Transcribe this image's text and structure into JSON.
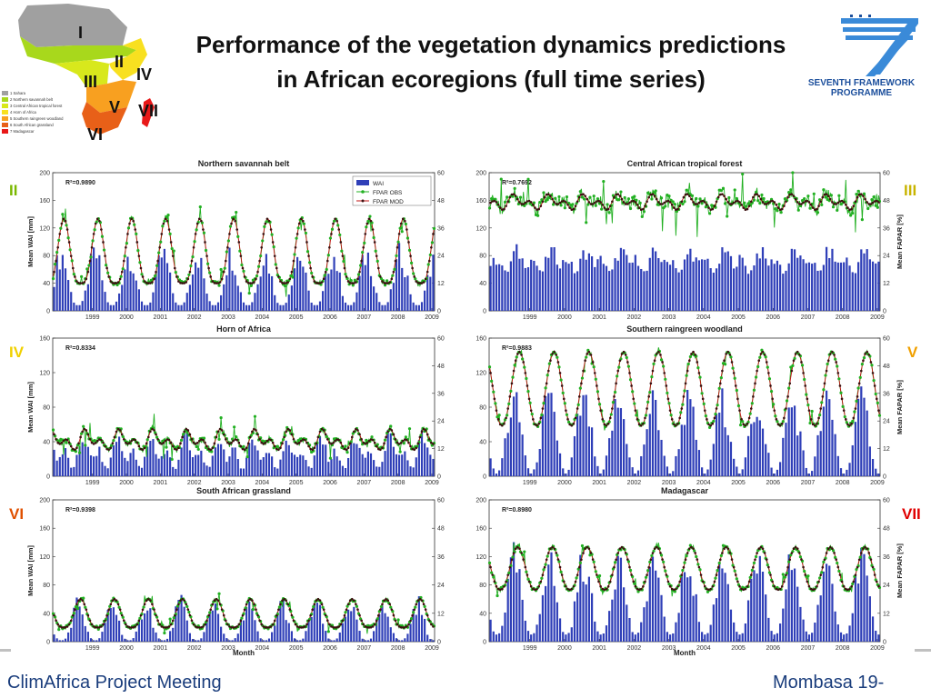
{
  "header": {
    "title_line1": "Performance of the vegetation dynamics predictions",
    "title_line2": "in African ecoregions (full time series)"
  },
  "logo": {
    "line1": "SEVENTH FRAMEWORK",
    "line2": "PROGRAMME",
    "color": "#1c4f9c"
  },
  "map": {
    "region_numbers": [
      "I",
      "II",
      "III",
      "IV",
      "V",
      "VI",
      "VII"
    ],
    "legend": [
      "1 Sahara",
      "2 Northern savannah belt",
      "3 Central African tropical forest",
      "4 Horn of Africa",
      "5 Southern raingreen woodland",
      "6 South African grassland",
      "7 Madagascar"
    ],
    "colors": [
      "#a0a0a0",
      "#a8d81c",
      "#d8e81c",
      "#f8e020",
      "#f8a020",
      "#e86018",
      "#e81818"
    ]
  },
  "footer": {
    "left": "ClimAfrica Project Meeting",
    "right": "Mombasa 19-"
  },
  "chart_data": [
    {
      "type": "bar",
      "title": "Northern savannah belt",
      "region_label": "II",
      "label_color": "#7ab800",
      "r2": "R²=0.9890",
      "legend": [
        "WAI",
        "FPAR OBS",
        "FPAR MOD"
      ],
      "ylabel": "Mean WAI [mm]",
      "ylabel_right": "",
      "xlabel": "",
      "ylim": [
        0,
        200
      ],
      "y2lim": [
        0,
        60
      ],
      "yticks": [
        0,
        40,
        80,
        120,
        160,
        200
      ],
      "y2ticks": [
        0,
        12,
        24,
        36,
        48,
        60
      ],
      "xticks": [
        "1999",
        "2000",
        "2001",
        "2002",
        "2003",
        "2004",
        "2005",
        "2006",
        "2007",
        "2008",
        "2009"
      ],
      "x_range": [
        1998.33,
        2009.58
      ],
      "model": {
        "bar_base": 8,
        "bar_amp": 78,
        "bar_phase": 0.58,
        "bar_sharp": 1.4,
        "fpar_base": 12,
        "fpar_amp": 28,
        "fpar_phase": 0.66,
        "fpar_sharp": 1.8,
        "noise_obs": 1.2
      }
    },
    {
      "type": "bar",
      "title": "Central African tropical forest",
      "region_label": "III",
      "label_color": "#c8b400",
      "r2": "R²=0.7692",
      "ylabel": "",
      "ylabel_right": "Mean FAPAR [%]",
      "xlabel": "",
      "ylim": [
        0,
        200
      ],
      "y2lim": [
        0,
        60
      ],
      "yticks": [
        0,
        40,
        80,
        120,
        160,
        200
      ],
      "y2ticks": [
        0,
        12,
        24,
        36,
        48,
        60
      ],
      "xticks": [
        "1999",
        "2000",
        "2001",
        "2002",
        "2003",
        "2004",
        "2005",
        "2006",
        "2007",
        "2008",
        "2009"
      ],
      "x_range": [
        1998.33,
        2009.58
      ],
      "model": {
        "bar_base": 45,
        "bar_amp": 45,
        "bar_phase": 0.2,
        "bar_sharp": 0.6,
        "fpar_base": 43,
        "fpar_amp": 8,
        "fpar_phase": 0.1,
        "fpar_sharp": 0.9,
        "noise_obs": 3.0,
        "semi": true
      }
    },
    {
      "type": "bar",
      "title": "Horn of Africa",
      "region_label": "IV",
      "label_color": "#f0d000",
      "r2": "R²=0.8334",
      "ylabel": "Mean WAI [mm]",
      "ylabel_right": "",
      "xlabel": "",
      "ylim": [
        0,
        160
      ],
      "y2lim": [
        0,
        60
      ],
      "yticks": [
        0,
        40,
        80,
        120,
        160
      ],
      "y2ticks": [
        0,
        12,
        24,
        36,
        48,
        60
      ],
      "xticks": [
        "1999",
        "2000",
        "2001",
        "2002",
        "2003",
        "2004",
        "2005",
        "2006",
        "2007",
        "2008",
        "2009"
      ],
      "x_range": [
        1998.33,
        2009.58
      ],
      "model": {
        "bar_base": 5,
        "bar_amp": 45,
        "bar_phase": 0.3,
        "bar_sharp": 1.0,
        "fpar_base": 11,
        "fpar_amp": 10,
        "fpar_phase": 0.35,
        "fpar_sharp": 1.2,
        "noise_obs": 1.5,
        "semi": true
      }
    },
    {
      "type": "bar",
      "title": "Southern raingreen woodland",
      "region_label": "V",
      "label_color": "#f0a000",
      "r2": "R²=0.9883",
      "ylabel": "",
      "ylabel_right": "Mean FAPAR [%]",
      "xlabel": "",
      "ylim": [
        0,
        160
      ],
      "y2lim": [
        0,
        60
      ],
      "yticks": [
        0,
        40,
        80,
        120,
        160
      ],
      "y2ticks": [
        0,
        12,
        24,
        36,
        48,
        60
      ],
      "xticks": [
        "1999",
        "2000",
        "2001",
        "2002",
        "2003",
        "2004",
        "2005",
        "2006",
        "2007",
        "2008",
        "2009"
      ],
      "x_range": [
        1998.33,
        2009.58
      ],
      "model": {
        "bar_base": 3,
        "bar_amp": 85,
        "bar_phase": 0.05,
        "bar_sharp": 1.0,
        "fpar_base": 22,
        "fpar_amp": 32,
        "fpar_phase": 0.2,
        "fpar_sharp": 1.1,
        "noise_obs": 1.0
      }
    },
    {
      "type": "bar",
      "title": "South African grassland",
      "region_label": "VI",
      "label_color": "#e05000",
      "r2": "R²=0.9398",
      "ylabel": "Mean WAI [mm]",
      "ylabel_right": "",
      "xlabel": "Month",
      "ylim": [
        0,
        200
      ],
      "y2lim": [
        0,
        60
      ],
      "yticks": [
        0,
        40,
        80,
        120,
        160,
        200
      ],
      "y2ticks": [
        0,
        12,
        24,
        36,
        48,
        60
      ],
      "xticks": [
        "1999",
        "2000",
        "2001",
        "2002",
        "2003",
        "2004",
        "2005",
        "2006",
        "2007",
        "2008",
        "2009"
      ],
      "x_range": [
        1998.33,
        2009.58
      ],
      "model": {
        "bar_base": 2,
        "bar_amp": 55,
        "bar_phase": 0.08,
        "bar_sharp": 1.6,
        "fpar_base": 6,
        "fpar_amp": 12,
        "fpar_phase": 0.15,
        "fpar_sharp": 1.6,
        "noise_obs": 0.8
      }
    },
    {
      "type": "bar",
      "title": "Madagascar",
      "region_label": "VII",
      "label_color": "#e00000",
      "r2": "R²=0.8980",
      "ylabel": "",
      "ylabel_right": "Mean FAPAR [%]",
      "xlabel": "Month",
      "ylim": [
        0,
        200
      ],
      "y2lim": [
        0,
        60
      ],
      "yticks": [
        0,
        40,
        80,
        120,
        160,
        200
      ],
      "y2ticks": [
        0,
        12,
        24,
        36,
        48,
        60
      ],
      "xticks": [
        "1999",
        "2000",
        "2001",
        "2002",
        "2003",
        "2004",
        "2005",
        "2006",
        "2007",
        "2008",
        "2009"
      ],
      "x_range": [
        1998.33,
        2009.58
      ],
      "model": {
        "bar_base": 10,
        "bar_amp": 110,
        "bar_phase": 0.05,
        "bar_sharp": 1.3,
        "fpar_base": 22,
        "fpar_amp": 18,
        "fpar_phase": 0.15,
        "fpar_sharp": 1.2,
        "noise_obs": 1.0
      }
    }
  ],
  "colors": {
    "wai_bar": "#2f3fb8",
    "fpar_obs": "#22b022",
    "fpar_mod": "#c01010"
  }
}
